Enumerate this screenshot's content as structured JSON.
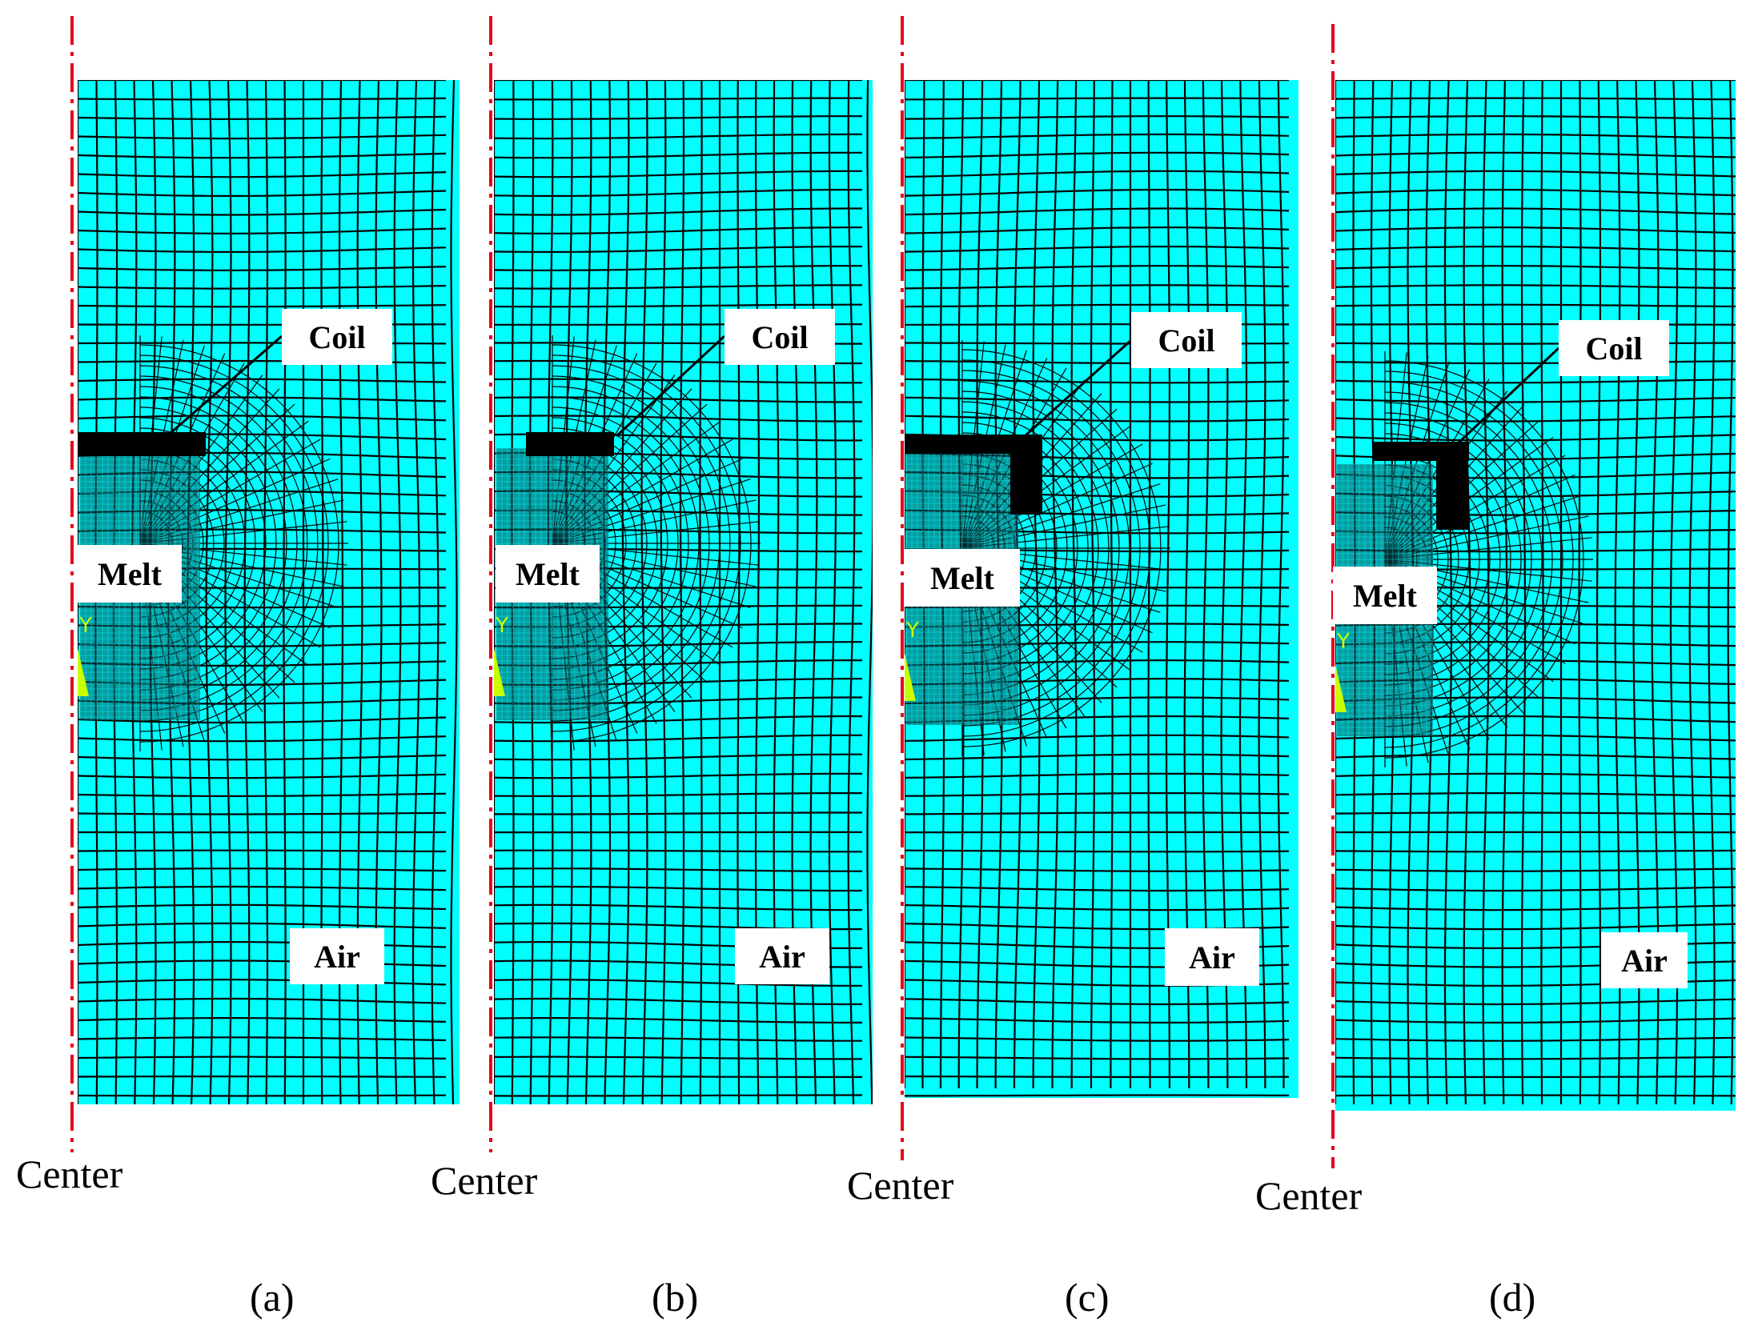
{
  "panels": [
    {
      "id": "a",
      "caption": "(a)",
      "center_label": "Center",
      "labels": {
        "coil": "Coil",
        "melt": "Melt",
        "air": "Air"
      },
      "axis_glyph": "Y"
    },
    {
      "id": "b",
      "caption": "(b)",
      "center_label": "Center",
      "labels": {
        "coil": "Coil",
        "melt": "Melt",
        "air": "Air"
      },
      "axis_glyph": "Y"
    },
    {
      "id": "c",
      "caption": "(c)",
      "center_label": "Center",
      "labels": {
        "coil": "Coil",
        "melt": "Melt",
        "air": "Air"
      },
      "axis_glyph": "Y"
    },
    {
      "id": "d",
      "caption": "(d)",
      "center_label": "Center",
      "labels": {
        "coil": "Coil",
        "melt": "Melt",
        "air": "Air"
      },
      "axis_glyph": "Y"
    }
  ],
  "colors": {
    "mesh_fill": "#00ffff",
    "mesh_line": "#000000",
    "centerline": "#e8001c",
    "axis_triad": "#c8ff00"
  }
}
